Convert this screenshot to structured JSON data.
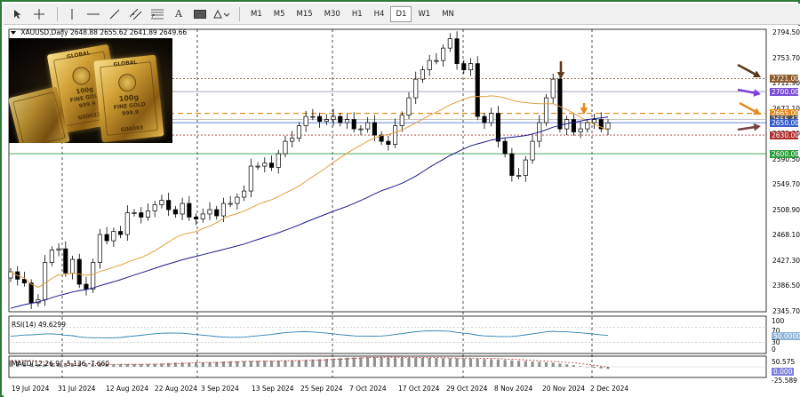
{
  "toolbar": {
    "tools": [
      "cursor-icon",
      "crosshair-icon",
      "vertical-line-icon",
      "horizontal-line-icon",
      "trendline-icon",
      "channel-icon",
      "fibonacci-icon",
      "text-icon",
      "label-icon",
      "shapes-icon"
    ],
    "text_tool": "A",
    "timeframes": [
      "M1",
      "M5",
      "M15",
      "M30",
      "H1",
      "H4",
      "D1",
      "W1",
      "MN"
    ],
    "active_timeframe": "D1"
  },
  "chart_header": {
    "symbol": "XAUUSD,Daily",
    "ohlc": "2648.88 2655.62 2641.89 2649.66"
  },
  "gold_photo": {
    "bar1": [
      "GLOBAL",
      "100g",
      "FINE GOLD",
      "999.9",
      "G00023"
    ],
    "bar2": [
      "GLOBAL",
      "100g",
      "FINE GOLD",
      "999.9",
      "G00003"
    ]
  },
  "price_axis": {
    "labels": [
      "2794.50",
      "2753.70",
      "2712.90",
      "2672.10",
      "2631.30",
      "2590.50",
      "2549.70",
      "2508.90",
      "2468.10",
      "2427.30",
      "2386.50",
      "2345.70"
    ]
  },
  "price_tags": [
    {
      "value": "2721.00",
      "color": "#8b5a2b"
    },
    {
      "value": "2700.00",
      "color": "#7b4fd6"
    },
    {
      "value": "2665.00",
      "color": "#e58a1f"
    },
    {
      "value": "2655.43",
      "color": "#505050"
    },
    {
      "value": "2650.00",
      "color": "#3a5fcd"
    },
    {
      "value": "2630.00",
      "color": "#b03030"
    },
    {
      "value": "2600.00",
      "color": "#2e9e3e"
    }
  ],
  "date_axis": {
    "labels": [
      "19 Jul 2024",
      "31 Jul 2024",
      "12 Aug 2024",
      "22 Aug 2024",
      "3 Sep 2024",
      "13 Sep 2024",
      "25 Sep 2024",
      "7 Oct 2024",
      "17 Oct 2024",
      "29 Oct 2024",
      "8 Nov 2024",
      "20 Nov 2024",
      "2 Dec 2024"
    ]
  },
  "rsi": {
    "label": "RSI(14) 49.6299",
    "levels": [
      "100",
      "70",
      "50.0000",
      "30",
      "0"
    ]
  },
  "macd": {
    "label": "MACD(12,26,9) -5.136 -7.660",
    "levels": [
      "50.575",
      "0.000",
      "-25.589"
    ]
  },
  "colors": {
    "bull_candle": "#ffffff",
    "bear_candle": "#000000",
    "ma_fast": "#e0a040",
    "ma_slow": "#1a1a8a",
    "rsi_line": "#2a7fb0",
    "macd_signal": "#b03030",
    "frame": "#2d7a3a"
  },
  "chart_data": {
    "type": "candlestick",
    "series": [
      {
        "name": "XAUUSD,Daily",
        "close": [
          2410,
          2398,
          2392,
          2360,
          2365,
          2425,
          2445,
          2447,
          2408,
          2430,
          2390,
          2382,
          2425,
          2470,
          2460,
          2475,
          2470,
          2505,
          2505,
          2498,
          2508,
          2518,
          2525,
          2510,
          2503,
          2520,
          2498,
          2495,
          2503,
          2510,
          2500,
          2520,
          2520,
          2530,
          2540,
          2580,
          2580,
          2585,
          2578,
          2600,
          2620,
          2625,
          2645,
          2660,
          2660,
          2652,
          2655,
          2660,
          2650,
          2655,
          2640,
          2640,
          2650,
          2630,
          2620,
          2615,
          2645,
          2662,
          2690,
          2720,
          2735,
          2750,
          2750,
          2770,
          2785,
          2745,
          2735,
          2745,
          2660,
          2650,
          2665,
          2620,
          2600,
          2565,
          2565,
          2590,
          2620,
          2650,
          2690,
          2720,
          2640,
          2655,
          2635,
          2640,
          2650,
          2655,
          2640,
          2649.66
        ]
      }
    ],
    "indicators": [
      "MA fast",
      "MA slow",
      "RSI(14)",
      "MACD(12,26,9)"
    ],
    "ylim": [
      2345.7,
      2794.5
    ],
    "horizontal_levels": [
      2721,
      2700,
      2665,
      2655.43,
      2650,
      2630,
      2600
    ]
  }
}
